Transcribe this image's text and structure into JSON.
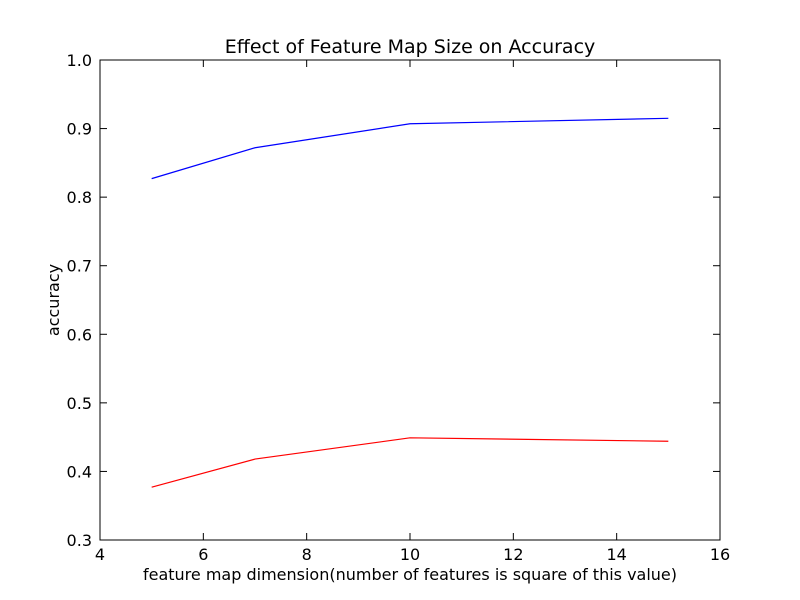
{
  "chart_data": {
    "type": "line",
    "title": "Effect of Feature Map Size on Accuracy",
    "xlabel": "feature map dimension(number of features is square of this value)",
    "ylabel": "accuracy",
    "xlim": [
      4,
      16
    ],
    "ylim": [
      0.3,
      1.0
    ],
    "xticks": [
      "4",
      "6",
      "8",
      "10",
      "12",
      "14",
      "16"
    ],
    "yticks": [
      "0.3",
      "0.4",
      "0.5",
      "0.6",
      "0.7",
      "0.8",
      "0.9",
      "1.0"
    ],
    "grid": false,
    "x": [
      5,
      7,
      10,
      15
    ],
    "series": [
      {
        "color": "#0000ff",
        "values": [
          0.827,
          0.872,
          0.907,
          0.915
        ]
      },
      {
        "color": "#ff0000",
        "values": [
          0.377,
          0.418,
          0.449,
          0.444
        ]
      }
    ]
  }
}
